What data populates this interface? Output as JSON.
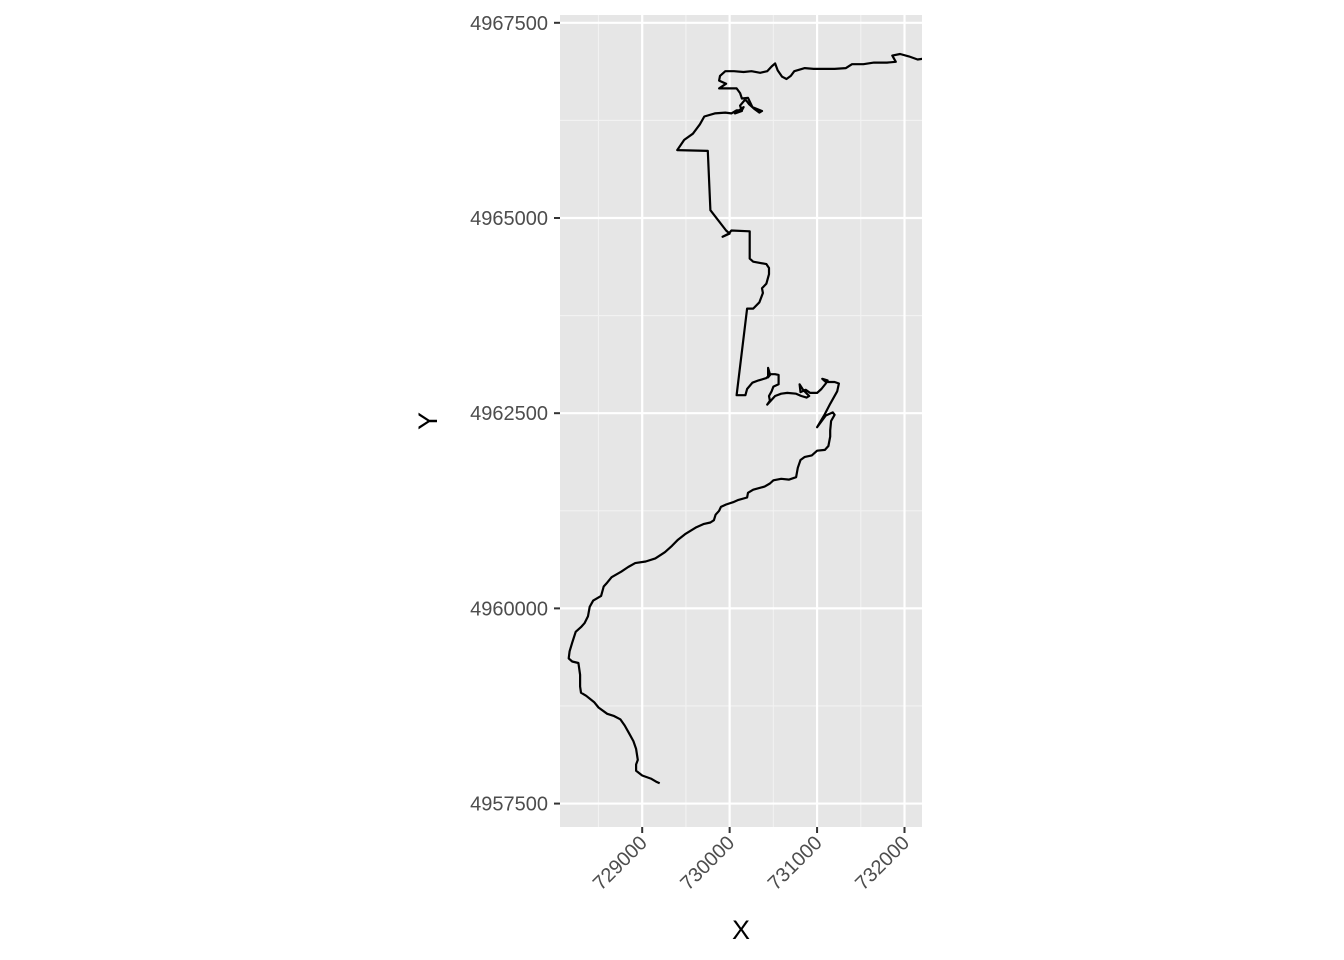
{
  "chart_data": {
    "type": "line",
    "title": "",
    "xlabel": "X",
    "ylabel": "Y",
    "xlim": [
      728060,
      732200
    ],
    "ylim": [
      4957200,
      4967600
    ],
    "grid": true,
    "x_ticks": [
      729000,
      730000,
      731000,
      732000
    ],
    "x_tick_labels": [
      "729000",
      "730000",
      "731000",
      "732000"
    ],
    "y_ticks": [
      4957500,
      4960000,
      4962500,
      4965000,
      4967500
    ],
    "y_tick_labels": [
      "4957500",
      "4960000",
      "4962500",
      4965000,
      "4967500"
    ],
    "series": [
      {
        "color": "#000000",
        "points": [
          [
            729200,
            4957760
          ],
          [
            729160,
            4957780
          ],
          [
            729100,
            4957820
          ],
          [
            729000,
            4957860
          ],
          [
            728930,
            4957920
          ],
          [
            728930,
            4958000
          ],
          [
            728950,
            4958060
          ],
          [
            728930,
            4958200
          ],
          [
            728900,
            4958300
          ],
          [
            728850,
            4958400
          ],
          [
            728800,
            4958500
          ],
          [
            728750,
            4958580
          ],
          [
            728680,
            4958620
          ],
          [
            728600,
            4958650
          ],
          [
            728500,
            4958730
          ],
          [
            728450,
            4958800
          ],
          [
            728360,
            4958880
          ],
          [
            728300,
            4958920
          ],
          [
            728290,
            4959000
          ],
          [
            728290,
            4959150
          ],
          [
            728270,
            4959300
          ],
          [
            728200,
            4959320
          ],
          [
            728160,
            4959360
          ],
          [
            728170,
            4959450
          ],
          [
            728200,
            4959560
          ],
          [
            728240,
            4959700
          ],
          [
            728300,
            4959760
          ],
          [
            728340,
            4959810
          ],
          [
            728380,
            4959900
          ],
          [
            728400,
            4960020
          ],
          [
            728440,
            4960100
          ],
          [
            728530,
            4960160
          ],
          [
            728560,
            4960280
          ],
          [
            728600,
            4960330
          ],
          [
            728650,
            4960400
          ],
          [
            728760,
            4960470
          ],
          [
            728840,
            4960530
          ],
          [
            728920,
            4960580
          ],
          [
            729040,
            4960600
          ],
          [
            729150,
            4960640
          ],
          [
            729260,
            4960720
          ],
          [
            729340,
            4960800
          ],
          [
            729410,
            4960880
          ],
          [
            729490,
            4960950
          ],
          [
            729620,
            4961040
          ],
          [
            729700,
            4961080
          ],
          [
            729780,
            4961100
          ],
          [
            729820,
            4961130
          ],
          [
            729840,
            4961200
          ],
          [
            729880,
            4961250
          ],
          [
            729900,
            4961300
          ],
          [
            729960,
            4961330
          ],
          [
            730040,
            4961360
          ],
          [
            730100,
            4961390
          ],
          [
            730200,
            4961420
          ],
          [
            730210,
            4961480
          ],
          [
            730270,
            4961520
          ],
          [
            730400,
            4961560
          ],
          [
            730460,
            4961600
          ],
          [
            730500,
            4961640
          ],
          [
            730590,
            4961660
          ],
          [
            730680,
            4961650
          ],
          [
            730760,
            4961680
          ],
          [
            730780,
            4961800
          ],
          [
            730810,
            4961900
          ],
          [
            730860,
            4961940
          ],
          [
            730940,
            4961960
          ],
          [
            731000,
            4962020
          ],
          [
            731090,
            4962030
          ],
          [
            731130,
            4962080
          ],
          [
            731150,
            4962200
          ],
          [
            731150,
            4962280
          ],
          [
            731160,
            4962400
          ],
          [
            731200,
            4962480
          ],
          [
            731180,
            4962510
          ],
          [
            731100,
            4962470
          ],
          [
            731000,
            4962320
          ],
          [
            731080,
            4962470
          ],
          [
            731150,
            4962620
          ],
          [
            731230,
            4962780
          ],
          [
            731250,
            4962880
          ],
          [
            731200,
            4962900
          ],
          [
            731100,
            4962900
          ],
          [
            731060,
            4962940
          ],
          [
            731120,
            4962920
          ],
          [
            731100,
            4962880
          ],
          [
            731050,
            4962810
          ],
          [
            731000,
            4962760
          ],
          [
            730920,
            4962760
          ],
          [
            730870,
            4962800
          ],
          [
            730810,
            4962770
          ],
          [
            730800,
            4962870
          ],
          [
            730840,
            4962800
          ],
          [
            730910,
            4962720
          ],
          [
            730880,
            4962700
          ],
          [
            730820,
            4962720
          ],
          [
            730760,
            4962750
          ],
          [
            730660,
            4962760
          ],
          [
            730590,
            4962750
          ],
          [
            730520,
            4962720
          ],
          [
            730430,
            4962610
          ],
          [
            730460,
            4962660
          ],
          [
            730450,
            4962720
          ],
          [
            730480,
            4962780
          ],
          [
            730500,
            4962840
          ],
          [
            730560,
            4962870
          ],
          [
            730560,
            4962990
          ],
          [
            730520,
            4963000
          ],
          [
            730470,
            4963000
          ],
          [
            730440,
            4962960
          ],
          [
            730440,
            4963080
          ],
          [
            730460,
            4963000
          ],
          [
            730420,
            4962950
          ],
          [
            730330,
            4962920
          ],
          [
            730260,
            4962890
          ],
          [
            730200,
            4962810
          ],
          [
            730180,
            4962730
          ],
          [
            730080,
            4962730
          ],
          [
            730200,
            4963840
          ],
          [
            730270,
            4963840
          ],
          [
            730340,
            4963920
          ],
          [
            730380,
            4964040
          ],
          [
            730370,
            4964100
          ],
          [
            730420,
            4964160
          ],
          [
            730450,
            4964280
          ],
          [
            730450,
            4964360
          ],
          [
            730420,
            4964410
          ],
          [
            730270,
            4964440
          ],
          [
            730230,
            4964480
          ],
          [
            730230,
            4964830
          ],
          [
            730020,
            4964840
          ],
          [
            729990,
            4964800
          ],
          [
            729920,
            4964760
          ],
          [
            730000,
            4964800
          ],
          [
            729960,
            4964840
          ],
          [
            729780,
            4965100
          ],
          [
            729750,
            4965860
          ],
          [
            729400,
            4965870
          ],
          [
            729480,
            4966000
          ],
          [
            729580,
            4966080
          ],
          [
            729660,
            4966200
          ],
          [
            729710,
            4966300
          ],
          [
            729830,
            4966340
          ],
          [
            729950,
            4966350
          ],
          [
            730020,
            4966340
          ],
          [
            730080,
            4966380
          ],
          [
            730140,
            4966380
          ],
          [
            730160,
            4966420
          ],
          [
            730060,
            4966340
          ],
          [
            730140,
            4966370
          ],
          [
            730120,
            4966440
          ],
          [
            730180,
            4966520
          ],
          [
            730220,
            4966460
          ],
          [
            730280,
            4966400
          ],
          [
            730340,
            4966350
          ],
          [
            730370,
            4966370
          ],
          [
            730260,
            4966420
          ],
          [
            730210,
            4966540
          ],
          [
            730140,
            4966530
          ],
          [
            730120,
            4966600
          ],
          [
            730080,
            4966660
          ],
          [
            730000,
            4966660
          ],
          [
            729880,
            4966660
          ],
          [
            729960,
            4966720
          ],
          [
            729880,
            4966760
          ],
          [
            729890,
            4966820
          ],
          [
            729950,
            4966880
          ],
          [
            730050,
            4966880
          ],
          [
            730160,
            4966870
          ],
          [
            730250,
            4966880
          ],
          [
            730350,
            4966860
          ],
          [
            730430,
            4966880
          ],
          [
            730480,
            4966940
          ],
          [
            730520,
            4966980
          ],
          [
            730550,
            4966890
          ],
          [
            730600,
            4966810
          ],
          [
            730650,
            4966780
          ],
          [
            730700,
            4966820
          ],
          [
            730740,
            4966880
          ],
          [
            730860,
            4966920
          ],
          [
            730960,
            4966910
          ],
          [
            731080,
            4966910
          ],
          [
            731200,
            4966910
          ],
          [
            731330,
            4966920
          ],
          [
            731400,
            4966970
          ],
          [
            731530,
            4966970
          ],
          [
            731650,
            4966990
          ],
          [
            731800,
            4966990
          ],
          [
            731900,
            4967000
          ],
          [
            731860,
            4967080
          ],
          [
            731950,
            4967100
          ],
          [
            732050,
            4967070
          ],
          [
            732150,
            4967030
          ],
          [
            732270,
            4967050
          ],
          [
            732350,
            4967050
          ],
          [
            732380,
            4967060
          ],
          [
            732420,
            4967060
          ]
        ]
      }
    ]
  }
}
